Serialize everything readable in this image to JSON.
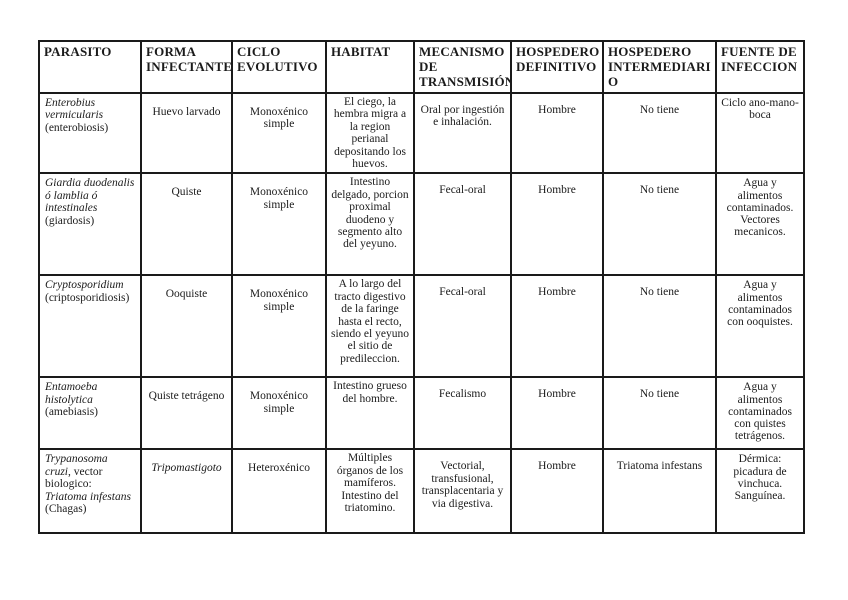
{
  "table": {
    "columns": [
      {
        "label": "PARASITO"
      },
      {
        "label": "FORMA INFECTANTE"
      },
      {
        "label": "CICLO EVOLUTIVO"
      },
      {
        "label": "HABITAT"
      },
      {
        "label": "MECANISMO DE TRANSMISIÓN"
      },
      {
        "label": "HOSPEDERO DEFINITIVO"
      },
      {
        "label": "HOSPEDERO INTERMEDIARIO"
      },
      {
        "label": "FUENTE DE INFECCION"
      }
    ],
    "rows": [
      {
        "parasito": [
          {
            "t": "Enterobius vermicularis",
            "it": true
          },
          {
            "t": " (enterobiosis)",
            "it": false
          }
        ],
        "forma": "Huevo larvado",
        "ciclo": "Monoxénico simple",
        "habitat": "El ciego, la hembra migra a la region perianal depositando los huevos.",
        "mecanismo": "Oral por ingestión e inhalación.",
        "hospedero_definitivo": "Hombre",
        "hospedero_intermediario": "No tiene",
        "fuente": "Ciclo ano-mano-boca"
      },
      {
        "parasito": [
          {
            "t": "Giardia duodenalis ó lamblia ó intestinales",
            "it": true
          },
          {
            "t": " (giardosis)",
            "it": false
          }
        ],
        "forma": "Quiste",
        "ciclo": "Monoxénico simple",
        "habitat": "Intestino delgado, porcion proximal duodeno y segmento alto del yeyuno.",
        "mecanismo": "Fecal-oral",
        "hospedero_definitivo": "Hombre",
        "hospedero_intermediario": "No tiene",
        "fuente": "Agua y alimentos contaminados. Vectores mecanicos."
      },
      {
        "parasito": [
          {
            "t": "Cryptosporidium",
            "it": true
          },
          {
            "t": " (criptosporidiosis)",
            "it": false
          }
        ],
        "forma": "Ooquiste",
        "ciclo": "Monoxénico simple",
        "habitat": "A lo largo del tracto digestivo de la faringe hasta el recto, siendo el yeyuno el sitio de predileccion.",
        "mecanismo": "Fecal-oral",
        "hospedero_definitivo": "Hombre",
        "hospedero_intermediario": "No tiene",
        "fuente": "Agua y alimentos contaminados con ooquistes."
      },
      {
        "parasito": [
          {
            "t": "Entamoeba histolytica",
            "it": true
          },
          {
            "t": " (amebiasis)",
            "it": false
          }
        ],
        "forma": "Quiste tetrágeno",
        "ciclo": "Monoxénico simple",
        "habitat": "Intestino grueso del hombre.",
        "mecanismo": "Fecalismo",
        "hospedero_definitivo": "Hombre",
        "hospedero_intermediario": "No tiene",
        "fuente": "Agua y alimentos contaminados con quistes tetrágenos."
      },
      {
        "parasito": [
          {
            "t": "Trypanosoma cruzi",
            "it": true
          },
          {
            "t": ", vector biologico: ",
            "it": false
          },
          {
            "t": "Triatoma infestans",
            "it": true
          },
          {
            "t": " (Chagas)",
            "it": false
          }
        ],
        "forma": "Tripomastigoto",
        "ciclo": "Heteroxénico",
        "habitat": "Múltiples órganos de los mamíferos. Intestino del triatomino.",
        "mecanismo": "Vectorial, transfusional, transplacentaria y via digestiva.",
        "hospedero_definitivo": "Hombre",
        "hospedero_intermediario": "Triatoma infestans",
        "fuente": "Dérmica: picadura de vinchuca. Sanguínea."
      }
    ]
  }
}
